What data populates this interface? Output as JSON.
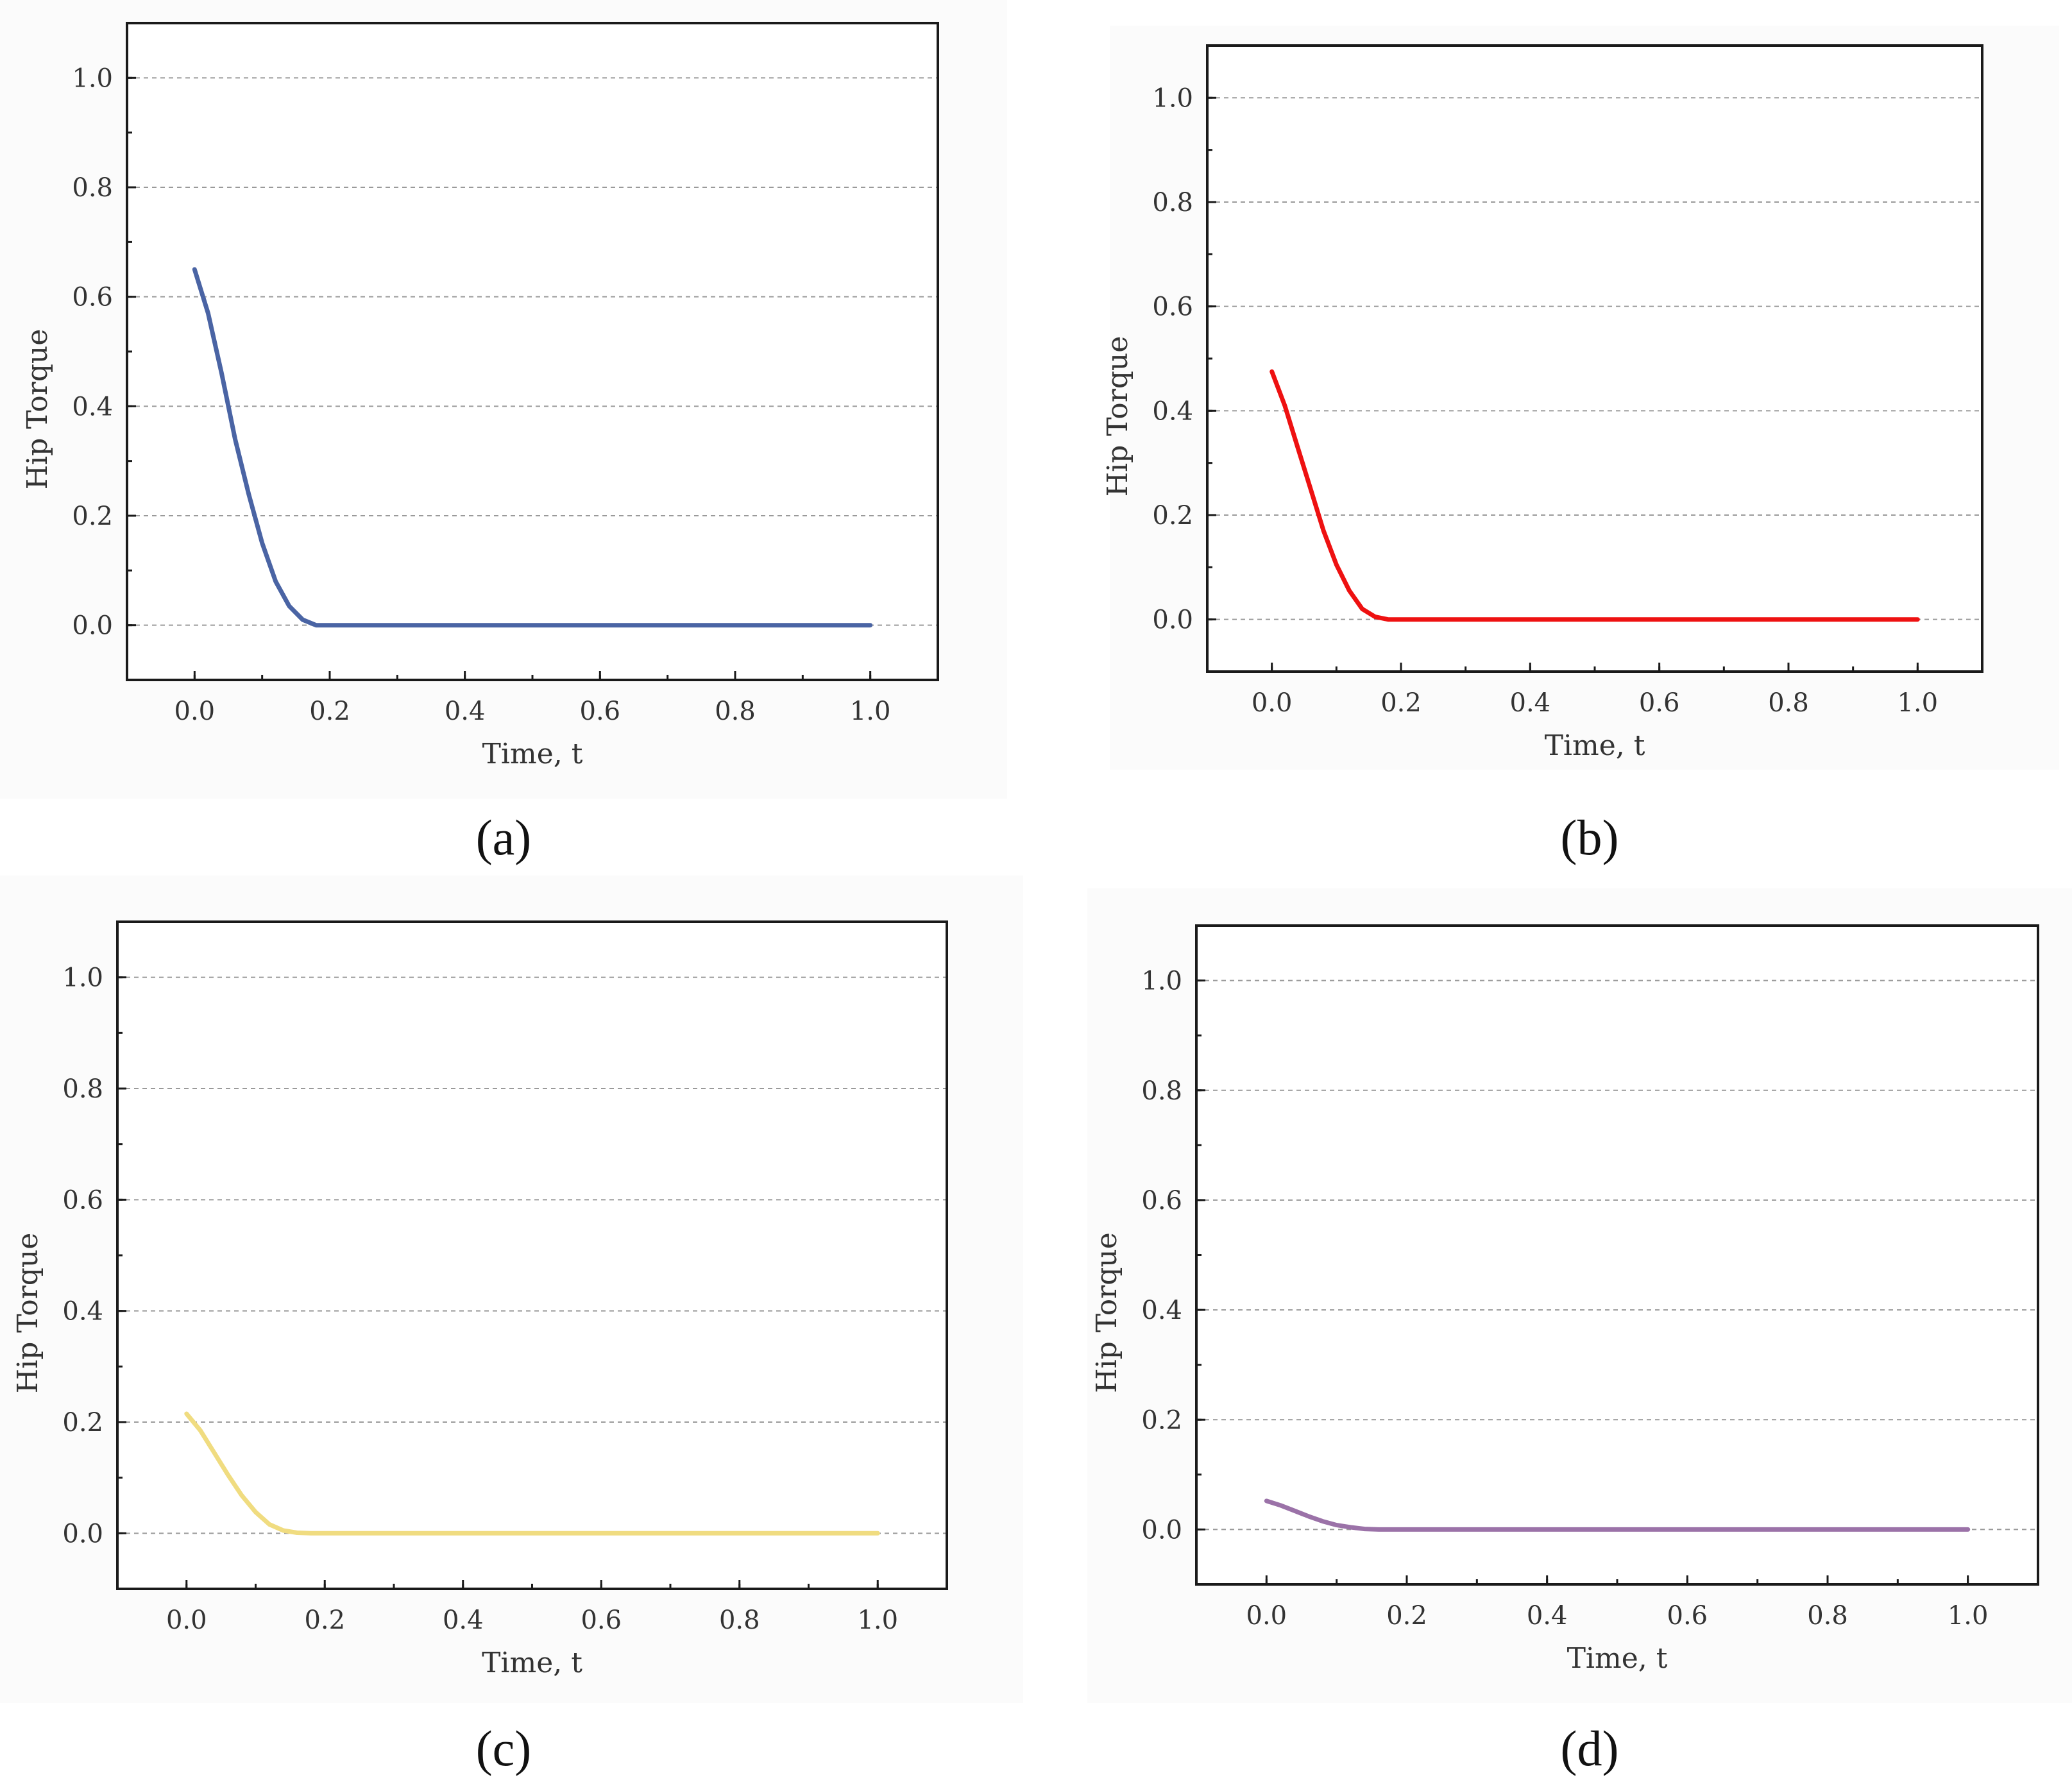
{
  "chart_data": [
    {
      "type": "line",
      "panel_label": "a",
      "caption": "(a)",
      "xlabel": "Time, t",
      "ylabel": "Hip Torque",
      "xlim": [
        -0.1,
        1.1
      ],
      "ylim": [
        -0.1,
        1.1
      ],
      "xticks": [
        "0.0",
        "0.2",
        "0.4",
        "0.6",
        "0.8",
        "1.0"
      ],
      "yticks": [
        "0.0",
        "0.2",
        "0.4",
        "0.6",
        "0.8",
        "1.0"
      ],
      "grid": "horizontal dashed",
      "series": [
        {
          "name": "Hip Torque",
          "color": "#4a64a4",
          "x": [
            0.0,
            0.02,
            0.04,
            0.06,
            0.08,
            0.1,
            0.12,
            0.14,
            0.16,
            0.18,
            0.2,
            0.4,
            0.6,
            0.8,
            1.0
          ],
          "y": [
            0.65,
            0.57,
            0.46,
            0.34,
            0.24,
            0.15,
            0.08,
            0.035,
            0.01,
            0.0,
            0.0,
            0.0,
            0.0,
            0.0,
            0.0
          ]
        }
      ]
    },
    {
      "type": "line",
      "panel_label": "b",
      "caption": "(b)",
      "xlabel": "Time, t",
      "ylabel": "Hip Torque",
      "xlim": [
        -0.1,
        1.1
      ],
      "ylim": [
        -0.1,
        1.1
      ],
      "xticks": [
        "0.0",
        "0.2",
        "0.4",
        "0.6",
        "0.8",
        "1.0"
      ],
      "yticks": [
        "0.0",
        "0.2",
        "0.4",
        "0.6",
        "0.8",
        "1.0"
      ],
      "grid": "horizontal dashed",
      "series": [
        {
          "name": "Hip Torque",
          "color": "#ee1111",
          "x": [
            0.0,
            0.02,
            0.04,
            0.06,
            0.08,
            0.1,
            0.12,
            0.14,
            0.16,
            0.18,
            0.2,
            0.4,
            0.6,
            0.8,
            1.0
          ],
          "y": [
            0.475,
            0.41,
            0.33,
            0.25,
            0.17,
            0.105,
            0.055,
            0.02,
            0.005,
            0.0,
            0.0,
            0.0,
            0.0,
            0.0,
            0.0
          ]
        }
      ]
    },
    {
      "type": "line",
      "panel_label": "c",
      "caption": "(c)",
      "xlabel": "Time, t",
      "ylabel": "Hip Torque",
      "xlim": [
        -0.1,
        1.1
      ],
      "ylim": [
        -0.1,
        1.1
      ],
      "xticks": [
        "0.0",
        "0.2",
        "0.4",
        "0.6",
        "0.8",
        "1.0"
      ],
      "yticks": [
        "0.0",
        "0.2",
        "0.4",
        "0.6",
        "0.8",
        "1.0"
      ],
      "grid": "horizontal dashed",
      "series": [
        {
          "name": "Hip Torque",
          "color": "#f0dc80",
          "x": [
            0.0,
            0.02,
            0.04,
            0.06,
            0.08,
            0.1,
            0.12,
            0.14,
            0.16,
            0.18,
            0.2,
            0.4,
            0.6,
            0.8,
            1.0
          ],
          "y": [
            0.215,
            0.185,
            0.145,
            0.105,
            0.068,
            0.038,
            0.016,
            0.005,
            0.001,
            0.0,
            0.0,
            0.0,
            0.0,
            0.0,
            0.0
          ]
        }
      ]
    },
    {
      "type": "line",
      "panel_label": "d",
      "caption": "(d)",
      "xlabel": "Time, t",
      "ylabel": "Hip Torque",
      "xlim": [
        -0.1,
        1.1
      ],
      "ylim": [
        -0.1,
        1.1
      ],
      "xticks": [
        "0.0",
        "0.2",
        "0.4",
        "0.6",
        "0.8",
        "1.0"
      ],
      "yticks": [
        "0.0",
        "0.2",
        "0.4",
        "0.6",
        "0.8",
        "1.0"
      ],
      "grid": "horizontal dashed",
      "series": [
        {
          "name": "Hip Torque",
          "color": "#9b72a8",
          "x": [
            0.0,
            0.02,
            0.04,
            0.06,
            0.08,
            0.1,
            0.12,
            0.14,
            0.16,
            0.18,
            0.2,
            0.4,
            0.6,
            0.8,
            1.0
          ],
          "y": [
            0.052,
            0.044,
            0.034,
            0.024,
            0.015,
            0.008,
            0.004,
            0.001,
            0.0,
            0.0,
            0.0,
            0.0,
            0.0,
            0.0,
            0.0
          ]
        }
      ]
    }
  ]
}
